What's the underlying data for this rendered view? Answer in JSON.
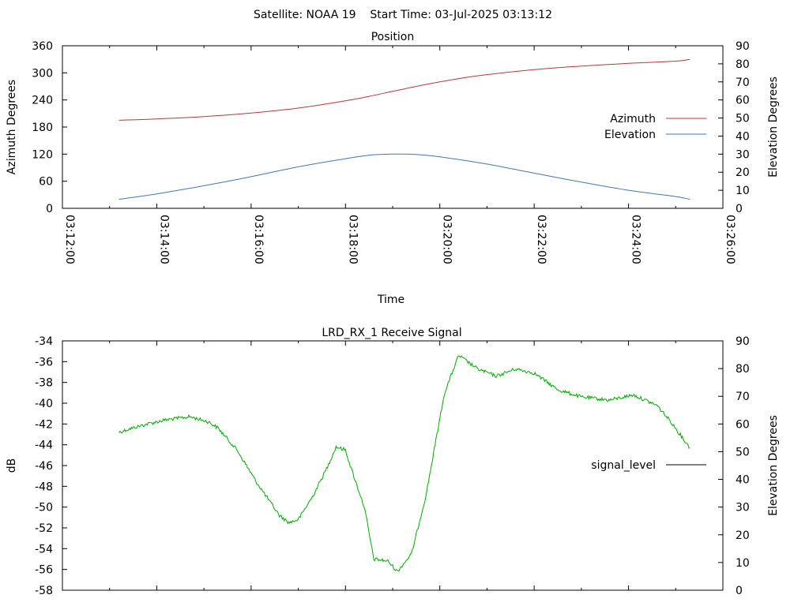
{
  "header": {
    "title": "Satellite: NOAA 19    Start Time: 03-Jul-2025 03:13:12"
  },
  "chart_data": [
    {
      "type": "line",
      "title": "Position",
      "xlabel": "Time",
      "ylabel": "Azimuth Degrees",
      "y2label": "Elevation Degrees",
      "xlim": [
        "03:12:00",
        "03:26:00"
      ],
      "x_ticks": [
        "03:12:00",
        "03:14:00",
        "03:16:00",
        "03:18:00",
        "03:20:00",
        "03:22:00",
        "03:24:00",
        "03:26:00"
      ],
      "ylim": [
        0,
        360
      ],
      "y_ticks": [
        "0",
        "60",
        "120",
        "180",
        "240",
        "300",
        "360"
      ],
      "y2lim": [
        0,
        90
      ],
      "y2_ticks": [
        "0",
        "10",
        "20",
        "30",
        "40",
        "50",
        "60",
        "70",
        "80",
        "90"
      ],
      "legend_position": "right",
      "series": [
        {
          "name": "Azimuth",
          "axis": "y",
          "color": "#b03a3a",
          "x": [
            "03:13:12",
            "03:14:00",
            "03:15:00",
            "03:16:00",
            "03:17:00",
            "03:18:00",
            "03:18:30",
            "03:19:00",
            "03:19:30",
            "03:20:00",
            "03:20:30",
            "03:21:00",
            "03:22:00",
            "03:23:00",
            "03:24:00",
            "03:25:00",
            "03:25:18"
          ],
          "values": [
            195,
            198,
            203,
            211,
            222,
            238,
            248,
            259,
            270,
            280,
            289,
            296,
            307,
            315,
            321,
            326,
            330
          ]
        },
        {
          "name": "Elevation",
          "axis": "y2",
          "color": "#3e78b3",
          "x": [
            "03:13:12",
            "03:14:00",
            "03:15:00",
            "03:16:00",
            "03:17:00",
            "03:18:00",
            "03:18:30",
            "03:19:00",
            "03:19:30",
            "03:20:00",
            "03:21:00",
            "03:22:00",
            "03:23:00",
            "03:24:00",
            "03:25:00",
            "03:25:18"
          ],
          "values": [
            5,
            8,
            12.5,
            17.5,
            23,
            27.5,
            29.4,
            30,
            29.8,
            28.5,
            24.5,
            19.5,
            14.5,
            10,
            6.5,
            5
          ]
        }
      ]
    },
    {
      "type": "line",
      "title": "LRD_RX_1 Receive Signal",
      "ylabel": "dB",
      "y2label": "Elevation Degrees",
      "xlim": [
        "03:12:00",
        "03:26:00"
      ],
      "ylim": [
        -58,
        -34
      ],
      "y_ticks": [
        "-34",
        "-36",
        "-38",
        "-40",
        "-42",
        "-44",
        "-46",
        "-48",
        "-50",
        "-52",
        "-54",
        "-56",
        "-58"
      ],
      "y2lim": [
        0,
        90
      ],
      "y2_ticks": [
        "0",
        "10",
        "20",
        "30",
        "40",
        "50",
        "60",
        "70",
        "80",
        "90"
      ],
      "legend_position": "right",
      "series": [
        {
          "name": "signal_level",
          "axis": "y",
          "color": "#00aa00",
          "x": [
            "03:13:12",
            "03:13:24",
            "03:13:48",
            "03:14:12",
            "03:14:42",
            "03:15:06",
            "03:15:18",
            "03:15:42",
            "03:16:06",
            "03:16:24",
            "03:16:36",
            "03:16:48",
            "03:17:00",
            "03:17:18",
            "03:17:36",
            "03:17:48",
            "03:18:00",
            "03:18:06",
            "03:18:24",
            "03:18:36",
            "03:18:54",
            "03:19:06",
            "03:19:24",
            "03:19:42",
            "03:19:54",
            "03:20:06",
            "03:20:24",
            "03:20:48",
            "03:21:12",
            "03:21:36",
            "03:22:00",
            "03:22:30",
            "03:23:00",
            "03:23:36",
            "03:24:06",
            "03:24:36",
            "03:24:54",
            "03:25:18"
          ],
          "values": [
            -42.8,
            -42.5,
            -42.0,
            -41.6,
            -41.3,
            -41.8,
            -42.4,
            -44.5,
            -47.5,
            -49.5,
            -50.8,
            -51.5,
            -51.2,
            -49.0,
            -46.3,
            -44.2,
            -44.5,
            -46.0,
            -50.0,
            -55.0,
            -55.2,
            -56.2,
            -54.5,
            -49.0,
            -44.0,
            -39.0,
            -35.4,
            -36.7,
            -37.4,
            -36.7,
            -37.1,
            -38.7,
            -39.4,
            -39.7,
            -39.2,
            -40.2,
            -41.8,
            -44.3
          ]
        }
      ]
    }
  ]
}
